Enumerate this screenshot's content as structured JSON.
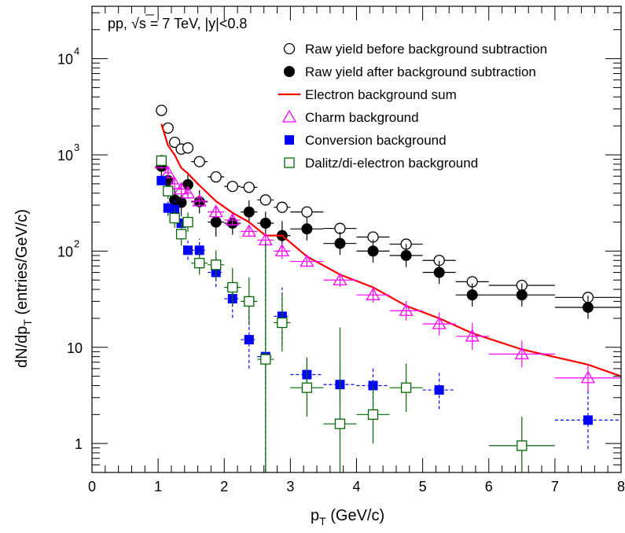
{
  "chart_data": {
    "type": "scatter",
    "annotation_prefix": "pp, ",
    "annotation_sqrt": "√",
    "annotation_rest": "s = 7 TeV, |y|<0.8",
    "xlabel_main": "p",
    "xlabel_sub": "T",
    "xlabel_rest": " (GeV/c)",
    "ylabel_main": "dN/dp",
    "ylabel_sub": "T",
    "ylabel_rest": " (entries/GeV/c)",
    "x_scale": "linear",
    "y_scale": "log",
    "xlim": [
      0,
      8
    ],
    "ylim": [
      0.5,
      35000
    ],
    "grid": false,
    "legend_position": "top-right",
    "x_ticks": [
      "0",
      "1",
      "2",
      "3",
      "4",
      "5",
      "6",
      "7",
      "8"
    ],
    "y_ticks": [
      {
        "value": 1,
        "label": "1"
      },
      {
        "value": 10,
        "label": "10"
      },
      {
        "value": 100,
        "label": "10",
        "exp": "2"
      },
      {
        "value": 1000,
        "label": "10",
        "exp": "3"
      },
      {
        "value": 10000,
        "label": "10",
        "exp": "4"
      }
    ],
    "series": [
      {
        "name": "Raw yield before background subtraction",
        "marker": "open-circle",
        "color": "#000000",
        "points": [
          {
            "x": 1.05,
            "y": 2900,
            "xerr": 0.05
          },
          {
            "x": 1.15,
            "y": 1900,
            "xerr": 0.05
          },
          {
            "x": 1.25,
            "y": 1350,
            "xerr": 0.05
          },
          {
            "x": 1.35,
            "y": 1150,
            "xerr": 0.05
          },
          {
            "x": 1.45,
            "y": 1180,
            "xerr": 0.05
          },
          {
            "x": 1.625,
            "y": 850,
            "xerr": 0.125
          },
          {
            "x": 1.875,
            "y": 590,
            "xerr": 0.125
          },
          {
            "x": 2.125,
            "y": 470,
            "xerr": 0.125
          },
          {
            "x": 2.375,
            "y": 460,
            "xerr": 0.125
          },
          {
            "x": 2.625,
            "y": 340,
            "xerr": 0.125
          },
          {
            "x": 2.875,
            "y": 285,
            "xerr": 0.125
          },
          {
            "x": 3.25,
            "y": 255,
            "xerr": 0.25
          },
          {
            "x": 3.75,
            "y": 172,
            "xerr": 0.25
          },
          {
            "x": 4.25,
            "y": 140,
            "xerr": 0.25
          },
          {
            "x": 4.75,
            "y": 118,
            "xerr": 0.25
          },
          {
            "x": 5.25,
            "y": 80,
            "xerr": 0.25
          },
          {
            "x": 5.75,
            "y": 48,
            "xerr": 0.25
          },
          {
            "x": 6.5,
            "y": 44,
            "xerr": 0.5
          },
          {
            "x": 7.5,
            "y": 33,
            "xerr": 0.5
          }
        ]
      },
      {
        "name": "Raw yield after background subtraction",
        "marker": "filled-circle",
        "color": "#000000",
        "points": [
          {
            "x": 1.05,
            "y": 760,
            "xerr": 0.05,
            "yerr": 0.12
          },
          {
            "x": 1.15,
            "y": 540,
            "xerr": 0.05,
            "yerr": 0.12
          },
          {
            "x": 1.25,
            "y": 340,
            "xerr": 0.05,
            "yerr": 0.12
          },
          {
            "x": 1.35,
            "y": 320,
            "xerr": 0.05,
            "yerr": 0.12
          },
          {
            "x": 1.45,
            "y": 490,
            "xerr": 0.05,
            "yerr": 0.12
          },
          {
            "x": 1.625,
            "y": 325,
            "xerr": 0.125,
            "yerr": 0.12
          },
          {
            "x": 1.875,
            "y": 200,
            "xerr": 0.125,
            "yerr": 0.15
          },
          {
            "x": 2.125,
            "y": 195,
            "xerr": 0.125,
            "yerr": 0.12
          },
          {
            "x": 2.375,
            "y": 255,
            "xerr": 0.125,
            "yerr": 0.12
          },
          {
            "x": 2.625,
            "y": 195,
            "xerr": 0.125,
            "yerr": 0.12
          },
          {
            "x": 2.875,
            "y": 145,
            "xerr": 0.125,
            "yerr": 0.15
          },
          {
            "x": 3.25,
            "y": 170,
            "xerr": 0.25,
            "yerr": 0.12
          },
          {
            "x": 3.75,
            "y": 120,
            "xerr": 0.25,
            "yerr": 0.12
          },
          {
            "x": 4.25,
            "y": 100,
            "xerr": 0.25,
            "yerr": 0.12
          },
          {
            "x": 4.75,
            "y": 90,
            "xerr": 0.25,
            "yerr": 0.12
          },
          {
            "x": 5.25,
            "y": 60,
            "xerr": 0.25,
            "yerr": 0.12
          },
          {
            "x": 5.75,
            "y": 35,
            "xerr": 0.25,
            "yerr": 0.12
          },
          {
            "x": 6.5,
            "y": 35,
            "xerr": 0.5,
            "yerr": 0.12
          },
          {
            "x": 7.5,
            "y": 26,
            "xerr": 0.5,
            "yerr": 0.12
          }
        ]
      },
      {
        "name": "Electron background sum",
        "marker": "line",
        "color": "#ff0000",
        "points": [
          {
            "x": 1.05,
            "y": 2100
          },
          {
            "x": 1.15,
            "y": 1250
          },
          {
            "x": 1.25,
            "y": 1000
          },
          {
            "x": 1.35,
            "y": 730
          },
          {
            "x": 1.45,
            "y": 640
          },
          {
            "x": 1.6,
            "y": 500
          },
          {
            "x": 1.875,
            "y": 330
          },
          {
            "x": 2.125,
            "y": 250
          },
          {
            "x": 2.375,
            "y": 200
          },
          {
            "x": 2.625,
            "y": 145
          },
          {
            "x": 2.875,
            "y": 145
          },
          {
            "x": 3.25,
            "y": 88
          },
          {
            "x": 3.75,
            "y": 57
          },
          {
            "x": 4.25,
            "y": 42
          },
          {
            "x": 4.75,
            "y": 27
          },
          {
            "x": 5.25,
            "y": 20
          },
          {
            "x": 5.75,
            "y": 14
          },
          {
            "x": 6.5,
            "y": 9.5
          },
          {
            "x": 7.5,
            "y": 6.6
          },
          {
            "x": 8.0,
            "y": 5.0
          }
        ]
      },
      {
        "name": "Charm background",
        "marker": "open-triangle",
        "color": "#ff00ff",
        "points": [
          {
            "x": 1.05,
            "y": 820,
            "xerr": 0.05,
            "yerr": 0.06
          },
          {
            "x": 1.15,
            "y": 650,
            "xerr": 0.05,
            "yerr": 0.06
          },
          {
            "x": 1.25,
            "y": 500,
            "xerr": 0.05,
            "yerr": 0.06
          },
          {
            "x": 1.35,
            "y": 440,
            "xerr": 0.05,
            "yerr": 0.06
          },
          {
            "x": 1.45,
            "y": 400,
            "xerr": 0.05,
            "yerr": 0.06
          },
          {
            "x": 1.625,
            "y": 330,
            "xerr": 0.125,
            "yerr": 0.06
          },
          {
            "x": 1.875,
            "y": 255,
            "xerr": 0.125,
            "yerr": 0.06
          },
          {
            "x": 2.125,
            "y": 210,
            "xerr": 0.125,
            "yerr": 0.06
          },
          {
            "x": 2.375,
            "y": 160,
            "xerr": 0.125,
            "yerr": 0.06
          },
          {
            "x": 2.625,
            "y": 130,
            "xerr": 0.125,
            "yerr": 0.06
          },
          {
            "x": 2.875,
            "y": 100,
            "xerr": 0.125,
            "yerr": 0.08
          },
          {
            "x": 3.25,
            "y": 78,
            "xerr": 0.25,
            "yerr": 0.06
          },
          {
            "x": 3.75,
            "y": 50,
            "xerr": 0.25,
            "yerr": 0.07
          },
          {
            "x": 4.25,
            "y": 35,
            "xerr": 0.25,
            "yerr": 0.08
          },
          {
            "x": 4.75,
            "y": 24,
            "xerr": 0.25,
            "yerr": 0.1
          },
          {
            "x": 5.25,
            "y": 17.5,
            "xerr": 0.25,
            "yerr": 0.12
          },
          {
            "x": 5.75,
            "y": 13,
            "xerr": 0.25,
            "yerr": 0.14
          },
          {
            "x": 6.5,
            "y": 8.5,
            "xerr": 0.5,
            "yerr": 0.14
          },
          {
            "x": 7.5,
            "y": 4.8,
            "xerr": 0.5,
            "yerr": 0.14
          }
        ]
      },
      {
        "name": "Conversion background",
        "marker": "filled-square",
        "color": "#0000ff",
        "dashed_errors": true,
        "points": [
          {
            "x": 1.05,
            "y": 540,
            "xerr": 0.05
          },
          {
            "x": 1.15,
            "y": 280,
            "xerr": 0.05,
            "yerr": 0.08
          },
          {
            "x": 1.25,
            "y": 270,
            "xerr": 0.05,
            "yerr": 0.1
          },
          {
            "x": 1.35,
            "y": 195,
            "xerr": 0.05,
            "yerr": 0.1
          },
          {
            "x": 1.45,
            "y": 102,
            "xerr": 0.05,
            "yerr": 0.1
          },
          {
            "x": 1.625,
            "y": 102,
            "xerr": 0.125,
            "yerr": 0.12
          },
          {
            "x": 1.875,
            "y": 60,
            "xerr": 0.125,
            "yerr": 0.15
          },
          {
            "x": 2.125,
            "y": 32,
            "xerr": 0.125,
            "yerr": 0.2
          },
          {
            "x": 2.375,
            "y": 12,
            "xerr": 0.125,
            "yerr": 0.3
          },
          {
            "x": 2.625,
            "y": 8,
            "xerr": 0.125,
            "yerr": 1.2
          },
          {
            "x": 2.875,
            "y": 21,
            "xerr": 0.125,
            "yerr": 0.3
          },
          {
            "x": 3.25,
            "y": 5.2,
            "xerr": 0.25,
            "yerr": 0.2
          },
          {
            "x": 3.75,
            "y": 4.1,
            "xerr": 0.25,
            "yerr": 0.2
          },
          {
            "x": 4.25,
            "y": 4.0,
            "xerr": 0.25,
            "yerr": 0.2
          },
          {
            "x": 5.25,
            "y": 3.6,
            "xerr": 0.25,
            "yerr": 0.2
          },
          {
            "x": 7.5,
            "y": 1.75,
            "xerr": 0.5,
            "yerr": 0.3
          }
        ]
      },
      {
        "name": "Dalitz/di-electron background",
        "marker": "open-square",
        "color": "#006600",
        "points": [
          {
            "x": 1.05,
            "y": 870,
            "xerr": 0.05
          },
          {
            "x": 1.15,
            "y": 420,
            "xerr": 0.05,
            "yerr": 0.08
          },
          {
            "x": 1.25,
            "y": 220,
            "xerr": 0.05,
            "yerr": 0.1
          },
          {
            "x": 1.35,
            "y": 150,
            "xerr": 0.05,
            "yerr": 0.12
          },
          {
            "x": 1.45,
            "y": 200,
            "xerr": 0.05,
            "yerr": 0.1
          },
          {
            "x": 1.625,
            "y": 75,
            "xerr": 0.125,
            "yerr": 0.12
          },
          {
            "x": 1.875,
            "y": 72,
            "xerr": 0.125,
            "yerr": 0.15
          },
          {
            "x": 2.125,
            "y": 42,
            "xerr": 0.125,
            "yerr": 0.2
          },
          {
            "x": 2.375,
            "y": 30,
            "xerr": 0.125,
            "yerr": 0.25
          },
          {
            "x": 2.625,
            "y": 7.5,
            "xerr": 0.125,
            "yerr": 1.2
          },
          {
            "x": 2.875,
            "y": 18,
            "xerr": 0.125,
            "yerr": 0.3
          },
          {
            "x": 3.25,
            "y": 3.8,
            "xerr": 0.25,
            "yerr": 0.3
          },
          {
            "x": 3.75,
            "y": 1.6,
            "xerr": 0.25,
            "yerr": 1.0
          },
          {
            "x": 4.25,
            "y": 2.0,
            "xerr": 0.25,
            "yerr": 0.3
          },
          {
            "x": 4.75,
            "y": 3.8,
            "xerr": 0.25,
            "yerr": 0.25
          },
          {
            "x": 6.5,
            "y": 0.95,
            "xerr": 0.5,
            "yerr": 0.3
          }
        ]
      }
    ]
  }
}
